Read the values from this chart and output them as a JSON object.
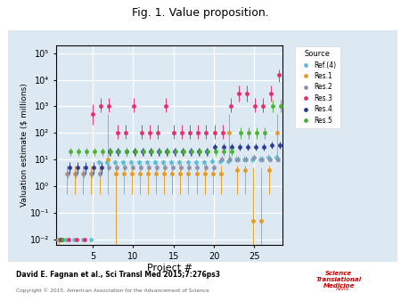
{
  "title": "Fig. 1. Value proposition.",
  "xlabel": "Project #",
  "ylabel": "Valuation estimate ($ millions)",
  "xlim": [
    0.5,
    28.5
  ],
  "background_color": "#dce9f2",
  "sources": [
    "Ref.(4)",
    "Res.1",
    "Res.2",
    "Res.3",
    "Res.4",
    "Res.5"
  ],
  "colors": [
    "#5bbcd8",
    "#e8981e",
    "#9090a8",
    "#e82868",
    "#283898",
    "#48b030"
  ],
  "footer_text": "David E. Fagnan et al., Sci Transl Med 2015;7:276ps3",
  "copyright_text": "Copyright © 2015, American Association for the Advancement of Science",
  "xticks": [
    5,
    10,
    15,
    20,
    25
  ],
  "ytick_vals": [
    0.01,
    0.1,
    1.0,
    10.0,
    100.0,
    1000.0,
    10000.0,
    100000.0
  ],
  "ytick_labels": [
    "10⁻²",
    "10⁻¹",
    "10⁰",
    "10¹",
    "10²",
    "10³",
    "10⁴",
    "10⁵"
  ],
  "offsets": [
    -0.25,
    -0.15,
    -0.05,
    0.05,
    0.15,
    0.25
  ],
  "data": {
    "ref4": {
      "x": [
        1,
        2,
        3,
        4,
        5,
        6,
        7,
        8,
        9,
        10,
        11,
        12,
        13,
        14,
        15,
        16,
        17,
        18,
        19,
        20,
        21,
        22,
        23,
        24,
        25,
        26,
        27,
        28
      ],
      "y": [
        0.01,
        0.01,
        0.01,
        0.01,
        0.01,
        8,
        8,
        8,
        8,
        8,
        8,
        8,
        8,
        8,
        8,
        8,
        8,
        8,
        8,
        9,
        9,
        9,
        10,
        10,
        10,
        10,
        12,
        12
      ],
      "y_lo": [
        0.01,
        0.01,
        0.01,
        0.01,
        0.01,
        6,
        6,
        6,
        6,
        6,
        6,
        6,
        6,
        6,
        6,
        6,
        6,
        6,
        6,
        7,
        7,
        7,
        8,
        8,
        8,
        8,
        9,
        9
      ],
      "y_hi": [
        0.01,
        0.01,
        0.01,
        0.01,
        0.01,
        10,
        10,
        10,
        10,
        10,
        10,
        10,
        10,
        10,
        10,
        10,
        10,
        10,
        10,
        12,
        12,
        12,
        14,
        14,
        14,
        14,
        16,
        16
      ]
    },
    "res1": {
      "x": [
        1,
        2,
        3,
        4,
        5,
        6,
        7,
        8,
        9,
        10,
        11,
        12,
        13,
        14,
        15,
        16,
        17,
        18,
        19,
        20,
        21,
        22,
        23,
        24,
        25,
        26,
        27,
        28
      ],
      "y": [
        0.01,
        3,
        3,
        3,
        3,
        3,
        10,
        3,
        3,
        3,
        3,
        3,
        3,
        3,
        3,
        3,
        3,
        3,
        3,
        3,
        3,
        100,
        4,
        4,
        0.05,
        0.05,
        4,
        100
      ],
      "y_lo": [
        0.001,
        0.5,
        0.5,
        0.5,
        0.5,
        0.5,
        0.5,
        0.001,
        0.5,
        0.5,
        0.5,
        0.5,
        0.5,
        0.5,
        0.5,
        0.5,
        0.5,
        0.5,
        0.5,
        0.5,
        0.5,
        10,
        0.5,
        0.5,
        0.001,
        0.001,
        0.5,
        10
      ],
      "y_hi": [
        0.01,
        6,
        6,
        6,
        6,
        6,
        500,
        6,
        6,
        6,
        6,
        6,
        6,
        6,
        6,
        6,
        6,
        6,
        6,
        6,
        6,
        500,
        6,
        6,
        5,
        5,
        6,
        500
      ]
    },
    "res2": {
      "x": [
        1,
        2,
        3,
        4,
        5,
        6,
        7,
        8,
        9,
        10,
        11,
        12,
        13,
        14,
        15,
        16,
        17,
        18,
        19,
        20,
        21,
        22,
        23,
        24,
        25,
        26,
        27,
        28
      ],
      "y": [
        0.01,
        3,
        3,
        3,
        3,
        3,
        5,
        5,
        5,
        5,
        5,
        5,
        5,
        5,
        5,
        5,
        5,
        5,
        5,
        5,
        10,
        10,
        10,
        10,
        12,
        10,
        10,
        10
      ],
      "y_lo": [
        0.01,
        2,
        2,
        2,
        2,
        2,
        4,
        4,
        4,
        4,
        4,
        4,
        4,
        4,
        4,
        4,
        4,
        4,
        4,
        4,
        8,
        8,
        8,
        8,
        9,
        8,
        8,
        8
      ],
      "y_hi": [
        0.01,
        4,
        4,
        4,
        4,
        4,
        7,
        7,
        7,
        7,
        7,
        7,
        7,
        7,
        7,
        7,
        7,
        7,
        7,
        7,
        14,
        14,
        14,
        14,
        16,
        14,
        14,
        14
      ]
    },
    "res3": {
      "x": [
        1,
        2,
        3,
        4,
        5,
        6,
        7,
        8,
        9,
        10,
        11,
        12,
        13,
        14,
        15,
        16,
        17,
        18,
        19,
        20,
        21,
        22,
        23,
        24,
        25,
        26,
        27,
        28
      ],
      "y": [
        0.01,
        0.01,
        0.01,
        0.01,
        500,
        1000,
        1000,
        100,
        100,
        1000,
        100,
        100,
        100,
        1000,
        100,
        100,
        100,
        100,
        100,
        100,
        100,
        1000,
        3000,
        3000,
        1000,
        1000,
        3000,
        15000
      ],
      "y_lo": [
        0.01,
        0.01,
        0.01,
        0.01,
        200,
        600,
        600,
        60,
        60,
        600,
        60,
        60,
        60,
        600,
        60,
        60,
        60,
        60,
        60,
        60,
        60,
        600,
        1500,
        1500,
        600,
        600,
        1500,
        8000
      ],
      "y_hi": [
        0.01,
        0.01,
        0.01,
        0.01,
        1200,
        2000,
        2000,
        200,
        200,
        2000,
        200,
        200,
        200,
        2000,
        200,
        200,
        200,
        200,
        200,
        200,
        200,
        2000,
        6000,
        6000,
        2000,
        2000,
        6000,
        25000
      ]
    },
    "res4": {
      "x": [
        1,
        2,
        3,
        4,
        5,
        6,
        7,
        8,
        9,
        10,
        11,
        12,
        13,
        14,
        15,
        16,
        17,
        18,
        19,
        20,
        21,
        22,
        23,
        24,
        25,
        26,
        27,
        28
      ],
      "y": [
        0.01,
        5,
        5,
        5,
        5,
        5,
        20,
        20,
        20,
        20,
        20,
        20,
        20,
        20,
        20,
        20,
        20,
        20,
        20,
        30,
        30,
        30,
        30,
        30,
        30,
        30,
        35,
        35
      ],
      "y_lo": [
        0.01,
        3,
        3,
        3,
        3,
        3,
        14,
        14,
        14,
        14,
        14,
        14,
        14,
        14,
        14,
        14,
        14,
        14,
        14,
        22,
        22,
        22,
        22,
        22,
        22,
        22,
        25,
        25
      ],
      "y_hi": [
        0.01,
        8,
        8,
        8,
        8,
        8,
        28,
        28,
        28,
        28,
        28,
        28,
        28,
        28,
        28,
        28,
        28,
        28,
        28,
        40,
        40,
        40,
        40,
        40,
        40,
        40,
        48,
        48
      ]
    },
    "res5": {
      "x": [
        1,
        2,
        3,
        4,
        5,
        6,
        7,
        8,
        9,
        10,
        11,
        12,
        13,
        14,
        15,
        16,
        17,
        18,
        19,
        20,
        21,
        22,
        23,
        24,
        25,
        26,
        27,
        28
      ],
      "y": [
        0.01,
        20,
        20,
        20,
        20,
        20,
        20,
        20,
        20,
        20,
        20,
        20,
        20,
        20,
        20,
        20,
        20,
        20,
        20,
        20,
        20,
        20,
        100,
        100,
        100,
        100,
        1000,
        1000
      ],
      "y_lo": [
        0.01,
        14,
        14,
        14,
        14,
        14,
        14,
        14,
        14,
        14,
        14,
        14,
        14,
        14,
        14,
        14,
        14,
        14,
        14,
        14,
        14,
        14,
        60,
        60,
        60,
        60,
        600,
        600
      ],
      "y_hi": [
        0.01,
        28,
        28,
        28,
        28,
        28,
        28,
        28,
        28,
        28,
        28,
        28,
        28,
        28,
        28,
        28,
        28,
        28,
        28,
        28,
        28,
        28,
        160,
        160,
        160,
        160,
        1800,
        1800
      ]
    }
  }
}
